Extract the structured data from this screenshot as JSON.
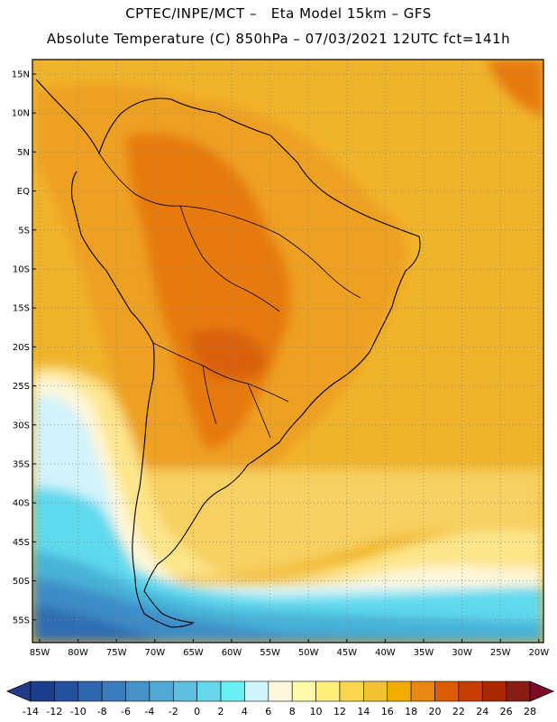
{
  "header": {
    "line1": "CPTEC/INPE/MCT –   Eta Model 15km – GFS",
    "line2": "Absolute Temperature (C) 850hPa – 07/03/2021 12UTC fct=141h"
  },
  "axes": {
    "lat_labels": [
      "15N",
      "10N",
      "5N",
      "EQ",
      "5S",
      "10S",
      "15S",
      "20S",
      "25S",
      "30S",
      "35S",
      "40S",
      "45S",
      "50S",
      "55S"
    ],
    "lon_labels": [
      "85W",
      "80W",
      "75W",
      "70W",
      "65W",
      "60W",
      "55W",
      "50W",
      "45W",
      "40W",
      "35W",
      "30W",
      "25W",
      "20W"
    ]
  },
  "colorbar": {
    "labels": [
      "-14",
      "-12",
      "-10",
      "-8",
      "-6",
      "-4",
      "-2",
      "0",
      "2",
      "4",
      "6",
      "8",
      "10",
      "12",
      "14",
      "16",
      "18",
      "20",
      "22",
      "24",
      "26",
      "28"
    ],
    "colors": [
      "#1c3f8c",
      "#25529e",
      "#2f66ad",
      "#3a7cbc",
      "#4692c8",
      "#52a8d3",
      "#5fbfdf",
      "#66d6ea",
      "#69f0f5",
      "#cff5fb",
      "#fff6dc",
      "#fffaa8",
      "#ffee7a",
      "#fad64f",
      "#f3c230",
      "#f0ac00",
      "#e9870e",
      "#df5b00",
      "#c73e00",
      "#a82800",
      "#8a1c14"
    ],
    "under_color": "#223b88",
    "over_color": "#7d0b27"
  },
  "regions": {
    "north_atlantic": "#f0b42a",
    "continent": "#eea020",
    "hot_core": "#e67a10",
    "hottest": "#d9600a",
    "south_warm": "#f6d060",
    "south_mild": "#fde58a",
    "south_cool": "#fff6d8",
    "cold_band1": "#d2f3fb",
    "cold_band2": "#5fd9ee",
    "cold_band3": "#47b2d8",
    "cold_band4": "#3d8cc6",
    "cold_band5": "#2f6db1"
  }
}
